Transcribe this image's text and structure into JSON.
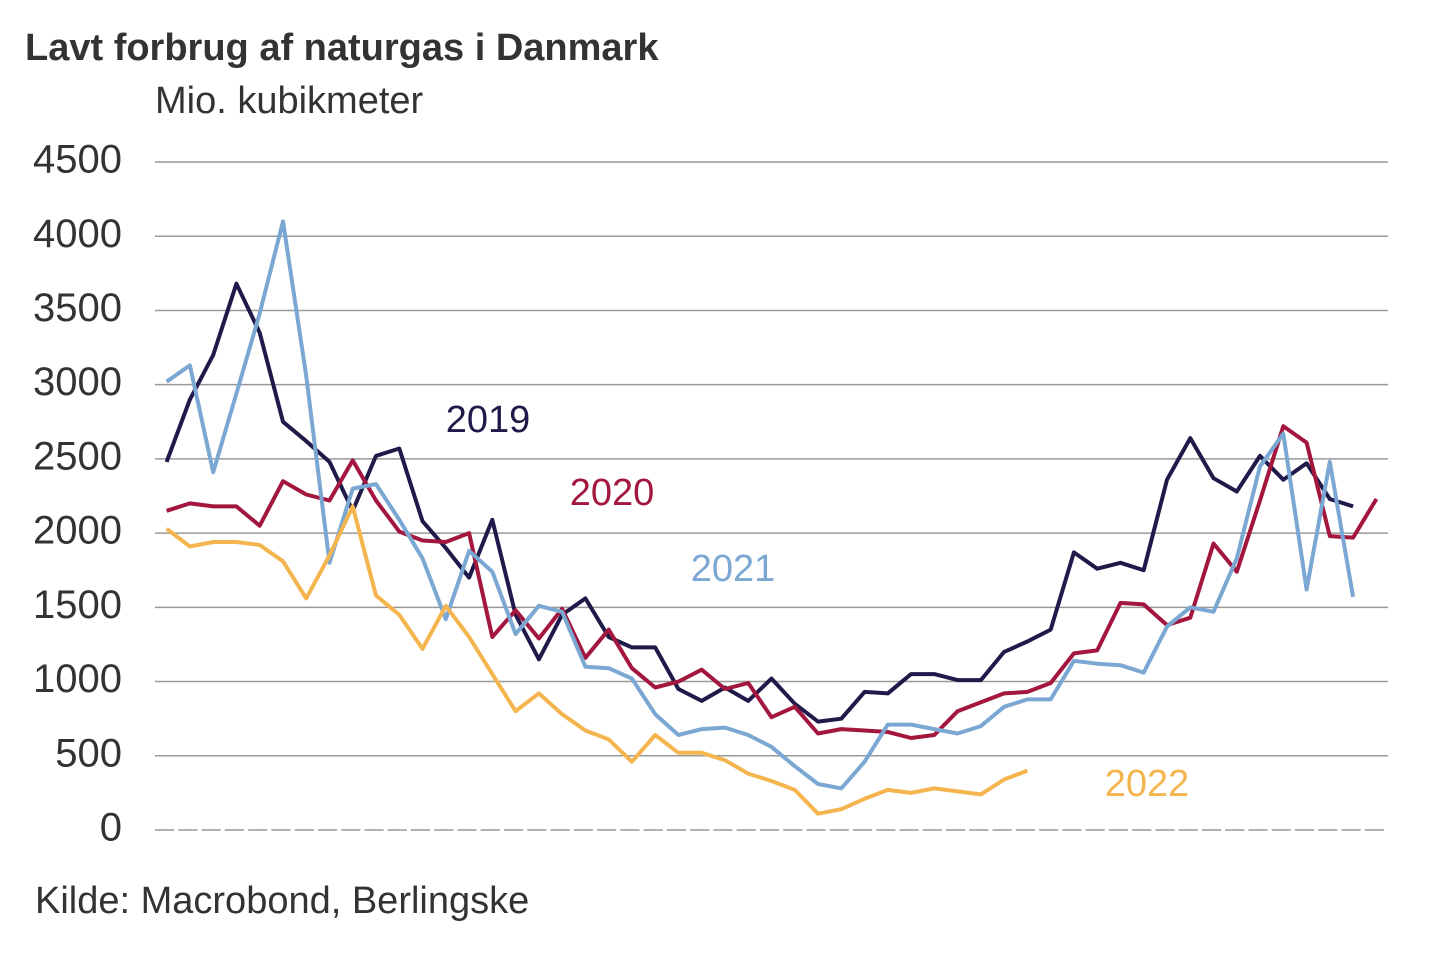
{
  "chart_data": {
    "type": "line",
    "title": "Lavt forbrug af naturgas i Danmark",
    "subtitle": "Mio. kubikmeter",
    "source": "Kilde: Macrobond, Berlingske",
    "categories": [
      null,
      null,
      null,
      null,
      null,
      null,
      null,
      null,
      null,
      null,
      null,
      null,
      null,
      null,
      null,
      null,
      null,
      null,
      null,
      null,
      null,
      null,
      null,
      null,
      null,
      null,
      null,
      null,
      null,
      null,
      null,
      null,
      null,
      null,
      null,
      null,
      null,
      null,
      null,
      null,
      null,
      null,
      null,
      null,
      null,
      null,
      null,
      null,
      null,
      null,
      null,
      null,
      null
    ],
    "series": [
      {
        "name": "2019",
        "color": "#1f1a4a",
        "values": [
          2480,
          2900,
          3200,
          3680,
          3350,
          2750,
          2620,
          2480,
          2150,
          2520,
          2570,
          2080,
          1900,
          1700,
          2090,
          1450,
          1150,
          1450,
          1560,
          1300,
          1230,
          1230,
          950,
          870,
          960,
          870,
          1020,
          850,
          730,
          750,
          930,
          920,
          1050,
          1050,
          1010,
          1010,
          1200,
          1270,
          1350,
          1870,
          1760,
          1800,
          1750,
          2360,
          2640,
          2370,
          2280,
          2520,
          2360,
          2470,
          2230,
          2180,
          null
        ]
      },
      {
        "name": "2020",
        "color": "#a3173f",
        "values": [
          2150,
          2200,
          2180,
          2180,
          2050,
          2350,
          2260,
          2220,
          2490,
          2220,
          2010,
          1950,
          1940,
          2000,
          1300,
          1480,
          1290,
          1490,
          1160,
          1350,
          1090,
          960,
          1000,
          1080,
          950,
          990,
          760,
          830,
          650,
          680,
          670,
          660,
          620,
          640,
          800,
          860,
          920,
          930,
          990,
          1190,
          1210,
          1530,
          1520,
          1380,
          1430,
          1930,
          1740,
          2220,
          2720,
          2610,
          1980,
          1970,
          2230
        ]
      },
      {
        "name": "2021",
        "color": "#7ba7d3",
        "values": [
          3020,
          3130,
          2410,
          2940,
          3480,
          4100,
          3060,
          1800,
          2300,
          2330,
          2090,
          1830,
          1420,
          1880,
          1740,
          1320,
          1510,
          1470,
          1100,
          1090,
          1020,
          780,
          640,
          680,
          690,
          640,
          560,
          430,
          310,
          280,
          460,
          710,
          710,
          680,
          650,
          700,
          830,
          880,
          880,
          1140,
          1120,
          1110,
          1060,
          1370,
          1500,
          1470,
          1830,
          2450,
          2670,
          1620,
          2480,
          1570,
          null
        ]
      },
      {
        "name": "2022",
        "color": "#f4b54f",
        "values": [
          2030,
          1910,
          1940,
          1940,
          1920,
          1810,
          1560,
          1850,
          2180,
          1580,
          1450,
          1220,
          1510,
          1300,
          1050,
          800,
          920,
          780,
          670,
          610,
          460,
          640,
          520,
          520,
          470,
          380,
          330,
          270,
          110,
          140,
          210,
          270,
          250,
          280,
          260,
          240,
          340,
          400,
          null,
          null,
          null,
          null,
          null,
          null,
          null,
          null,
          null,
          null,
          null,
          null,
          null,
          null,
          null
        ]
      }
    ],
    "ylim": [
      0,
      4500
    ],
    "yticks": [
      0,
      500,
      1000,
      1500,
      2000,
      2500,
      3000,
      3500,
      4000,
      4500
    ],
    "grid": true
  }
}
